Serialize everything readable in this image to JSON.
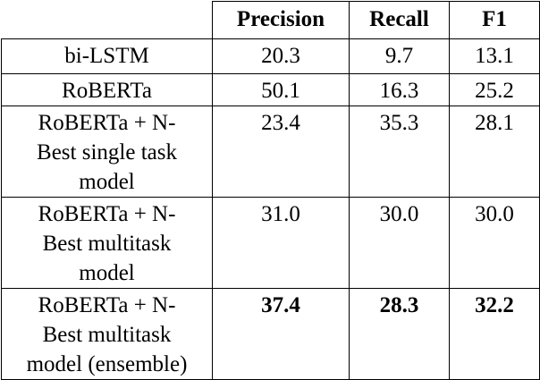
{
  "table": {
    "columns": [
      "Precision",
      "Recall",
      "F1"
    ],
    "rows": [
      {
        "label": [
          "bi-LSTM"
        ],
        "values": [
          "20.3",
          "9.7",
          "13.1"
        ]
      },
      {
        "label": [
          "RoBERTa"
        ],
        "values": [
          "50.1",
          "16.3",
          "25.2"
        ]
      },
      {
        "label": [
          "RoBERTa + N-",
          "Best single task",
          "model"
        ],
        "values": [
          "23.4",
          "35.3",
          "28.1"
        ]
      },
      {
        "label": [
          "RoBERTa + N-",
          "Best multitask",
          "model"
        ],
        "values": [
          "31.0",
          "30.0",
          "30.0"
        ]
      },
      {
        "label": [
          "RoBERTa + N-",
          "Best multitask",
          "model (ensemble)"
        ],
        "values": [
          "37.4",
          "28.3",
          "32.2"
        ],
        "bold": true
      }
    ]
  }
}
